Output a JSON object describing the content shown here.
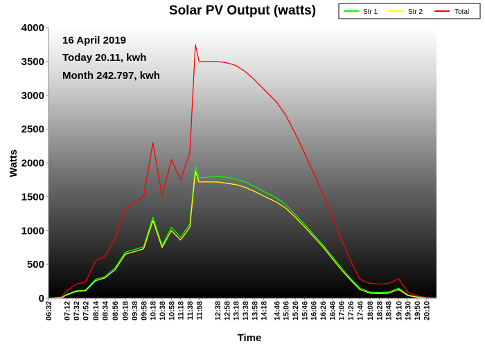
{
  "chart_data": {
    "type": "line",
    "title": "Solar PV Output (watts)",
    "xlabel": "Time",
    "ylabel": "Watts",
    "ylim": [
      0,
      4000
    ],
    "yticks": [
      0,
      500,
      1000,
      1500,
      2000,
      2500,
      3000,
      3500,
      4000
    ],
    "grid": false,
    "legend_position": "top-right",
    "annotations": [
      "16 April 2019",
      "Today 20.11, kwh",
      "Month 242.797, kwh"
    ],
    "x_start": "06:32",
    "x_end": "20:32",
    "x_step_minutes": 2,
    "xticks": [
      "06:32",
      "07:12",
      "07:32",
      "07:52",
      "08:14",
      "08:34",
      "08:56",
      "09:18",
      "09:38",
      "09:58",
      "10:18",
      "10:38",
      "10:58",
      "11:18",
      "11:38",
      "11:58",
      "12:38",
      "12:58",
      "13:18",
      "13:38",
      "13:58",
      "14:18",
      "14:46",
      "15:06",
      "15:26",
      "15:46",
      "16:06",
      "16:26",
      "16:46",
      "17:06",
      "17:26",
      "17:46",
      "18:08",
      "18:28",
      "18:48",
      "19:10",
      "19:30",
      "19:50",
      "20:10"
    ],
    "series": [
      {
        "name": "Str 1",
        "color": "#00ff00",
        "points": [
          [
            "06:32",
            0
          ],
          [
            "07:00",
            10
          ],
          [
            "07:12",
            60
          ],
          [
            "07:32",
            110
          ],
          [
            "07:52",
            120
          ],
          [
            "08:14",
            280
          ],
          [
            "08:34",
            320
          ],
          [
            "08:56",
            450
          ],
          [
            "09:18",
            680
          ],
          [
            "09:38",
            720
          ],
          [
            "09:58",
            760
          ],
          [
            "10:18",
            1200
          ],
          [
            "10:38",
            780
          ],
          [
            "10:58",
            1050
          ],
          [
            "11:18",
            900
          ],
          [
            "11:38",
            1100
          ],
          [
            "11:50",
            1950
          ],
          [
            "11:58",
            1780
          ],
          [
            "12:38",
            1800
          ],
          [
            "12:58",
            1790
          ],
          [
            "13:18",
            1760
          ],
          [
            "13:38",
            1720
          ],
          [
            "13:58",
            1650
          ],
          [
            "14:18",
            1580
          ],
          [
            "14:46",
            1480
          ],
          [
            "15:06",
            1380
          ],
          [
            "15:26",
            1240
          ],
          [
            "15:46",
            1100
          ],
          [
            "16:06",
            940
          ],
          [
            "16:26",
            790
          ],
          [
            "16:46",
            620
          ],
          [
            "17:06",
            450
          ],
          [
            "17:26",
            290
          ],
          [
            "17:46",
            150
          ],
          [
            "18:08",
            90
          ],
          [
            "18:28",
            85
          ],
          [
            "18:48",
            90
          ],
          [
            "19:10",
            150
          ],
          [
            "19:30",
            50
          ],
          [
            "19:50",
            20
          ],
          [
            "20:10",
            5
          ],
          [
            "20:32",
            0
          ]
        ]
      },
      {
        "name": "Str 2",
        "color": "#ffff00",
        "points": [
          [
            "06:32",
            0
          ],
          [
            "07:00",
            8
          ],
          [
            "07:12",
            50
          ],
          [
            "07:32",
            100
          ],
          [
            "07:52",
            110
          ],
          [
            "08:14",
            260
          ],
          [
            "08:34",
            300
          ],
          [
            "08:56",
            420
          ],
          [
            "09:18",
            650
          ],
          [
            "09:38",
            690
          ],
          [
            "09:58",
            730
          ],
          [
            "10:18",
            1150
          ],
          [
            "10:38",
            750
          ],
          [
            "10:58",
            1000
          ],
          [
            "11:18",
            860
          ],
          [
            "11:38",
            1050
          ],
          [
            "11:50",
            1880
          ],
          [
            "11:58",
            1720
          ],
          [
            "12:38",
            1720
          ],
          [
            "12:58",
            1700
          ],
          [
            "13:18",
            1680
          ],
          [
            "13:38",
            1640
          ],
          [
            "13:58",
            1580
          ],
          [
            "14:18",
            1510
          ],
          [
            "14:46",
            1420
          ],
          [
            "15:06",
            1330
          ],
          [
            "15:26",
            1200
          ],
          [
            "15:46",
            1060
          ],
          [
            "16:06",
            910
          ],
          [
            "16:26",
            760
          ],
          [
            "16:46",
            590
          ],
          [
            "17:06",
            420
          ],
          [
            "17:26",
            270
          ],
          [
            "17:46",
            130
          ],
          [
            "18:08",
            75
          ],
          [
            "18:28",
            70
          ],
          [
            "18:48",
            75
          ],
          [
            "19:10",
            130
          ],
          [
            "19:30",
            40
          ],
          [
            "19:50",
            15
          ],
          [
            "20:10",
            3
          ],
          [
            "20:32",
            0
          ]
        ]
      },
      {
        "name": "Total",
        "color": "#ff0000",
        "points": [
          [
            "06:32",
            0
          ],
          [
            "07:00",
            20
          ],
          [
            "07:12",
            110
          ],
          [
            "07:32",
            210
          ],
          [
            "07:52",
            240
          ],
          [
            "08:14",
            550
          ],
          [
            "08:34",
            620
          ],
          [
            "08:56",
            880
          ],
          [
            "09:18",
            1330
          ],
          [
            "09:38",
            1420
          ],
          [
            "09:58",
            1500
          ],
          [
            "10:18",
            2300
          ],
          [
            "10:38",
            1500
          ],
          [
            "10:58",
            2050
          ],
          [
            "11:18",
            1750
          ],
          [
            "11:38",
            2150
          ],
          [
            "11:50",
            3750
          ],
          [
            "11:58",
            3500
          ],
          [
            "12:38",
            3500
          ],
          [
            "12:58",
            3480
          ],
          [
            "13:18",
            3440
          ],
          [
            "13:38",
            3350
          ],
          [
            "13:58",
            3230
          ],
          [
            "14:18",
            3090
          ],
          [
            "14:46",
            2900
          ],
          [
            "15:06",
            2700
          ],
          [
            "15:26",
            2440
          ],
          [
            "15:46",
            2150
          ],
          [
            "16:06",
            1850
          ],
          [
            "16:26",
            1550
          ],
          [
            "16:46",
            1220
          ],
          [
            "17:06",
            870
          ],
          [
            "17:26",
            560
          ],
          [
            "17:46",
            280
          ],
          [
            "18:08",
            220
          ],
          [
            "18:28",
            210
          ],
          [
            "18:48",
            220
          ],
          [
            "19:10",
            290
          ],
          [
            "19:30",
            90
          ],
          [
            "19:50",
            35
          ],
          [
            "20:10",
            8
          ],
          [
            "20:32",
            0
          ]
        ]
      }
    ]
  }
}
